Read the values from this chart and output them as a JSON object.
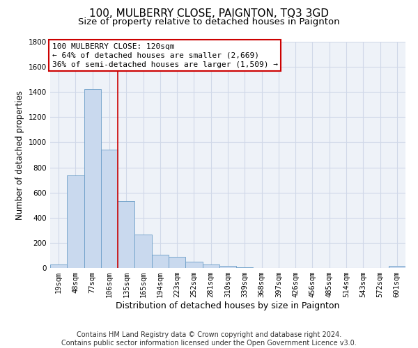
{
  "title1": "100, MULBERRY CLOSE, PAIGNTON, TQ3 3GD",
  "title2": "Size of property relative to detached houses in Paignton",
  "xlabel": "Distribution of detached houses by size in Paignton",
  "ylabel": "Number of detached properties",
  "categories": [
    "19sqm",
    "48sqm",
    "77sqm",
    "106sqm",
    "135sqm",
    "165sqm",
    "194sqm",
    "223sqm",
    "252sqm",
    "281sqm",
    "310sqm",
    "339sqm",
    "368sqm",
    "397sqm",
    "426sqm",
    "456sqm",
    "485sqm",
    "514sqm",
    "543sqm",
    "572sqm",
    "601sqm"
  ],
  "values": [
    25,
    735,
    1425,
    940,
    530,
    265,
    105,
    90,
    48,
    25,
    15,
    5,
    2,
    1,
    1,
    1,
    1,
    1,
    1,
    1,
    15
  ],
  "bar_color": "#c9d9ee",
  "bar_edge_color": "#6b9ec8",
  "vline_color": "#cc0000",
  "annotation_text": "100 MULBERRY CLOSE: 120sqm\n← 64% of detached houses are smaller (2,669)\n36% of semi-detached houses are larger (1,509) →",
  "annotation_box_color": "#ffffff",
  "annotation_box_edge": "#cc0000",
  "ylim": [
    0,
    1800
  ],
  "yticks": [
    0,
    200,
    400,
    600,
    800,
    1000,
    1200,
    1400,
    1600,
    1800
  ],
  "grid_color": "#d0d8e8",
  "bg_color": "#eef2f8",
  "footer": "Contains HM Land Registry data © Crown copyright and database right 2024.\nContains public sector information licensed under the Open Government Licence v3.0.",
  "title1_fontsize": 11,
  "title2_fontsize": 9.5,
  "xlabel_fontsize": 9,
  "ylabel_fontsize": 8.5,
  "tick_fontsize": 7.5,
  "annotation_fontsize": 8,
  "footer_fontsize": 7
}
